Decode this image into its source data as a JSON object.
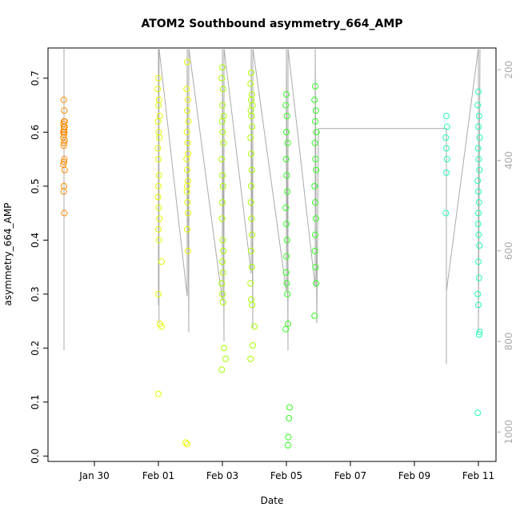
{
  "chart_data": {
    "type": "scatter",
    "title": "ATOM2 Southbound asymmetry_664_AMP",
    "x_label": "Date",
    "y_label": "asymmetry_664_AMP",
    "xlim": [
      28.55,
      42.55
    ],
    "xticks": [
      {
        "value": 30,
        "label": "Jan 30"
      },
      {
        "value": 32,
        "label": "Feb 01"
      },
      {
        "value": 34,
        "label": "Feb 03"
      },
      {
        "value": 36,
        "label": "Feb 05"
      },
      {
        "value": 38,
        "label": "Feb 07"
      },
      {
        "value": 40,
        "label": "Feb 09"
      },
      {
        "value": 42,
        "label": "Feb 11"
      }
    ],
    "ylim": [
      -0.01,
      0.756
    ],
    "yticks": [
      {
        "value": 0,
        "label": "0.0"
      },
      0.1,
      0.2,
      0.3,
      0.4,
      0.5,
      0.6,
      0.7
    ],
    "y2lim": [
      1065,
      152
    ],
    "y2ticks": [
      200,
      400,
      600,
      800,
      1000
    ],
    "series": [
      {
        "color": "#aaaaaa",
        "axis": "y2",
        "style": "line",
        "x": [
          29.05,
          29.05,
          29.07,
          32.0,
          32.0,
          32.02,
          32.02,
          32.9,
          32.9,
          32.95,
          32.95,
          34.0,
          34.0,
          34.05,
          34.05,
          34.9,
          34.9,
          34.95,
          34.95,
          36.0,
          36.0,
          36.05,
          36.05,
          36.9,
          36.9,
          36.95,
          37.0,
          41.0,
          41.0,
          41.0,
          42.0,
          42.0,
          42.05
        ],
        "values": [
          152,
          820,
          null,
          720,
          152,
          760,
          152,
          700,
          152,
          780,
          152,
          710,
          152,
          800,
          152,
          650,
          152,
          770,
          152,
          690,
          152,
          820,
          152,
          680,
          152,
          760,
          330,
          330,
          850,
          690,
          152,
          780,
          152
        ]
      },
      {
        "color": "#ff8c00",
        "style": "points",
        "x": [
          29.04,
          29.06,
          29.05,
          29.03,
          29.07,
          29.05,
          29.04,
          29.06,
          29.05,
          29.03,
          29.07,
          29.05,
          29.04,
          29.06,
          29.05,
          29.03,
          29.07,
          29.05,
          29.04,
          29.06,
          29.05,
          29.03,
          29.07
        ],
        "values": [
          0.66,
          0.64,
          0.62,
          0.615,
          0.61,
          0.605,
          0.6,
          0.6,
          0.595,
          0.59,
          0.585,
          0.58,
          0.575,
          0.55,
          0.545,
          0.54,
          0.53,
          0.5,
          0.49,
          0.45,
          0.61,
          0.6,
          0.62
        ]
      },
      {
        "color": "#e8ff00",
        "style": "points",
        "x": [
          32.0,
          31.98,
          32.02,
          32.0,
          32.04,
          31.99,
          32.01,
          32.03,
          31.98,
          32.0,
          32.02,
          32.0,
          31.99,
          32.01,
          32.03,
          32.0,
          32.02,
          32.1,
          32.0,
          32.05,
          32.1,
          32.0,
          32.9,
          32.88,
          32.92,
          32.9,
          32.94,
          32.89,
          32.91,
          32.93,
          32.88,
          32.9,
          32.92,
          32.9,
          32.89,
          32.91,
          32.93,
          32.9,
          32.92,
          32.85,
          32.9
        ],
        "values": [
          0.7,
          0.68,
          0.66,
          0.65,
          0.63,
          0.62,
          0.6,
          0.59,
          0.57,
          0.55,
          0.52,
          0.5,
          0.48,
          0.46,
          0.44,
          0.42,
          0.4,
          0.36,
          0.3,
          0.245,
          0.24,
          0.115,
          0.73,
          0.68,
          0.66,
          0.64,
          0.62,
          0.6,
          0.58,
          0.56,
          0.55,
          0.53,
          0.51,
          0.5,
          0.49,
          0.47,
          0.45,
          0.42,
          0.38,
          0.025,
          0.022
        ]
      },
      {
        "color": "#a8ff00",
        "style": "points",
        "x": [
          34.0,
          33.98,
          34.02,
          34.0,
          34.04,
          33.99,
          34.01,
          34.03,
          33.98,
          34.0,
          34.02,
          34.0,
          33.99,
          34.01,
          34.03,
          34.0,
          34.02,
          33.98,
          34.0,
          34.02,
          34.05,
          34.1,
          33.98,
          34.9,
          34.88,
          34.92,
          34.9,
          34.94,
          34.89,
          34.91,
          34.93,
          34.88,
          34.9,
          34.92,
          34.9,
          34.89,
          34.91,
          34.93,
          34.9,
          34.92,
          34.88,
          34.9,
          34.93,
          35.0,
          34.95,
          34.88
        ],
        "values": [
          0.72,
          0.7,
          0.68,
          0.65,
          0.63,
          0.62,
          0.6,
          0.58,
          0.55,
          0.52,
          0.5,
          0.47,
          0.44,
          0.4,
          0.38,
          0.36,
          0.34,
          0.32,
          0.3,
          0.285,
          0.2,
          0.18,
          0.16,
          0.71,
          0.69,
          0.67,
          0.66,
          0.65,
          0.64,
          0.63,
          0.61,
          0.59,
          0.56,
          0.53,
          0.5,
          0.47,
          0.44,
          0.41,
          0.38,
          0.35,
          0.32,
          0.29,
          0.28,
          0.24,
          0.205,
          0.18
        ]
      },
      {
        "color": "#33ff22",
        "style": "points",
        "x": [
          36.0,
          35.98,
          36.02,
          36.0,
          36.04,
          35.99,
          36.01,
          36.03,
          35.98,
          36.0,
          36.02,
          36.0,
          35.99,
          36.01,
          36.03,
          36.05,
          35.98,
          36.1,
          36.08,
          36.06,
          36.05,
          36.9,
          36.88,
          36.92,
          36.9,
          36.94,
          36.89,
          36.91,
          36.93,
          36.88,
          36.9,
          36.92,
          36.9,
          36.89,
          36.91,
          36.93,
          36.88
        ],
        "values": [
          0.67,
          0.65,
          0.63,
          0.6,
          0.58,
          0.55,
          0.52,
          0.49,
          0.46,
          0.43,
          0.4,
          0.37,
          0.34,
          0.32,
          0.3,
          0.245,
          0.235,
          0.09,
          0.07,
          0.035,
          0.02,
          0.685,
          0.66,
          0.64,
          0.62,
          0.6,
          0.58,
          0.55,
          0.53,
          0.5,
          0.47,
          0.44,
          0.41,
          0.38,
          0.35,
          0.32,
          0.26
        ]
      },
      {
        "color": "#22ffb4",
        "style": "points",
        "x": [
          41.0,
          41.02,
          40.98,
          41.0,
          41.02,
          41.0,
          40.98,
          42.0,
          41.98,
          42.02,
          42.0,
          42.04,
          41.99,
          42.01,
          42.03,
          41.98,
          42.0,
          42.02,
          42.0,
          41.99,
          42.01,
          42.03,
          42.0,
          42.02,
          41.98,
          42.0,
          42.04,
          42.02,
          41.98
        ],
        "values": [
          0.63,
          0.61,
          0.59,
          0.57,
          0.55,
          0.525,
          0.45,
          0.675,
          0.65,
          0.63,
          0.61,
          0.59,
          0.57,
          0.55,
          0.53,
          0.51,
          0.49,
          0.47,
          0.45,
          0.43,
          0.41,
          0.39,
          0.36,
          0.33,
          0.3,
          0.28,
          0.23,
          0.225,
          0.08
        ]
      }
    ]
  }
}
